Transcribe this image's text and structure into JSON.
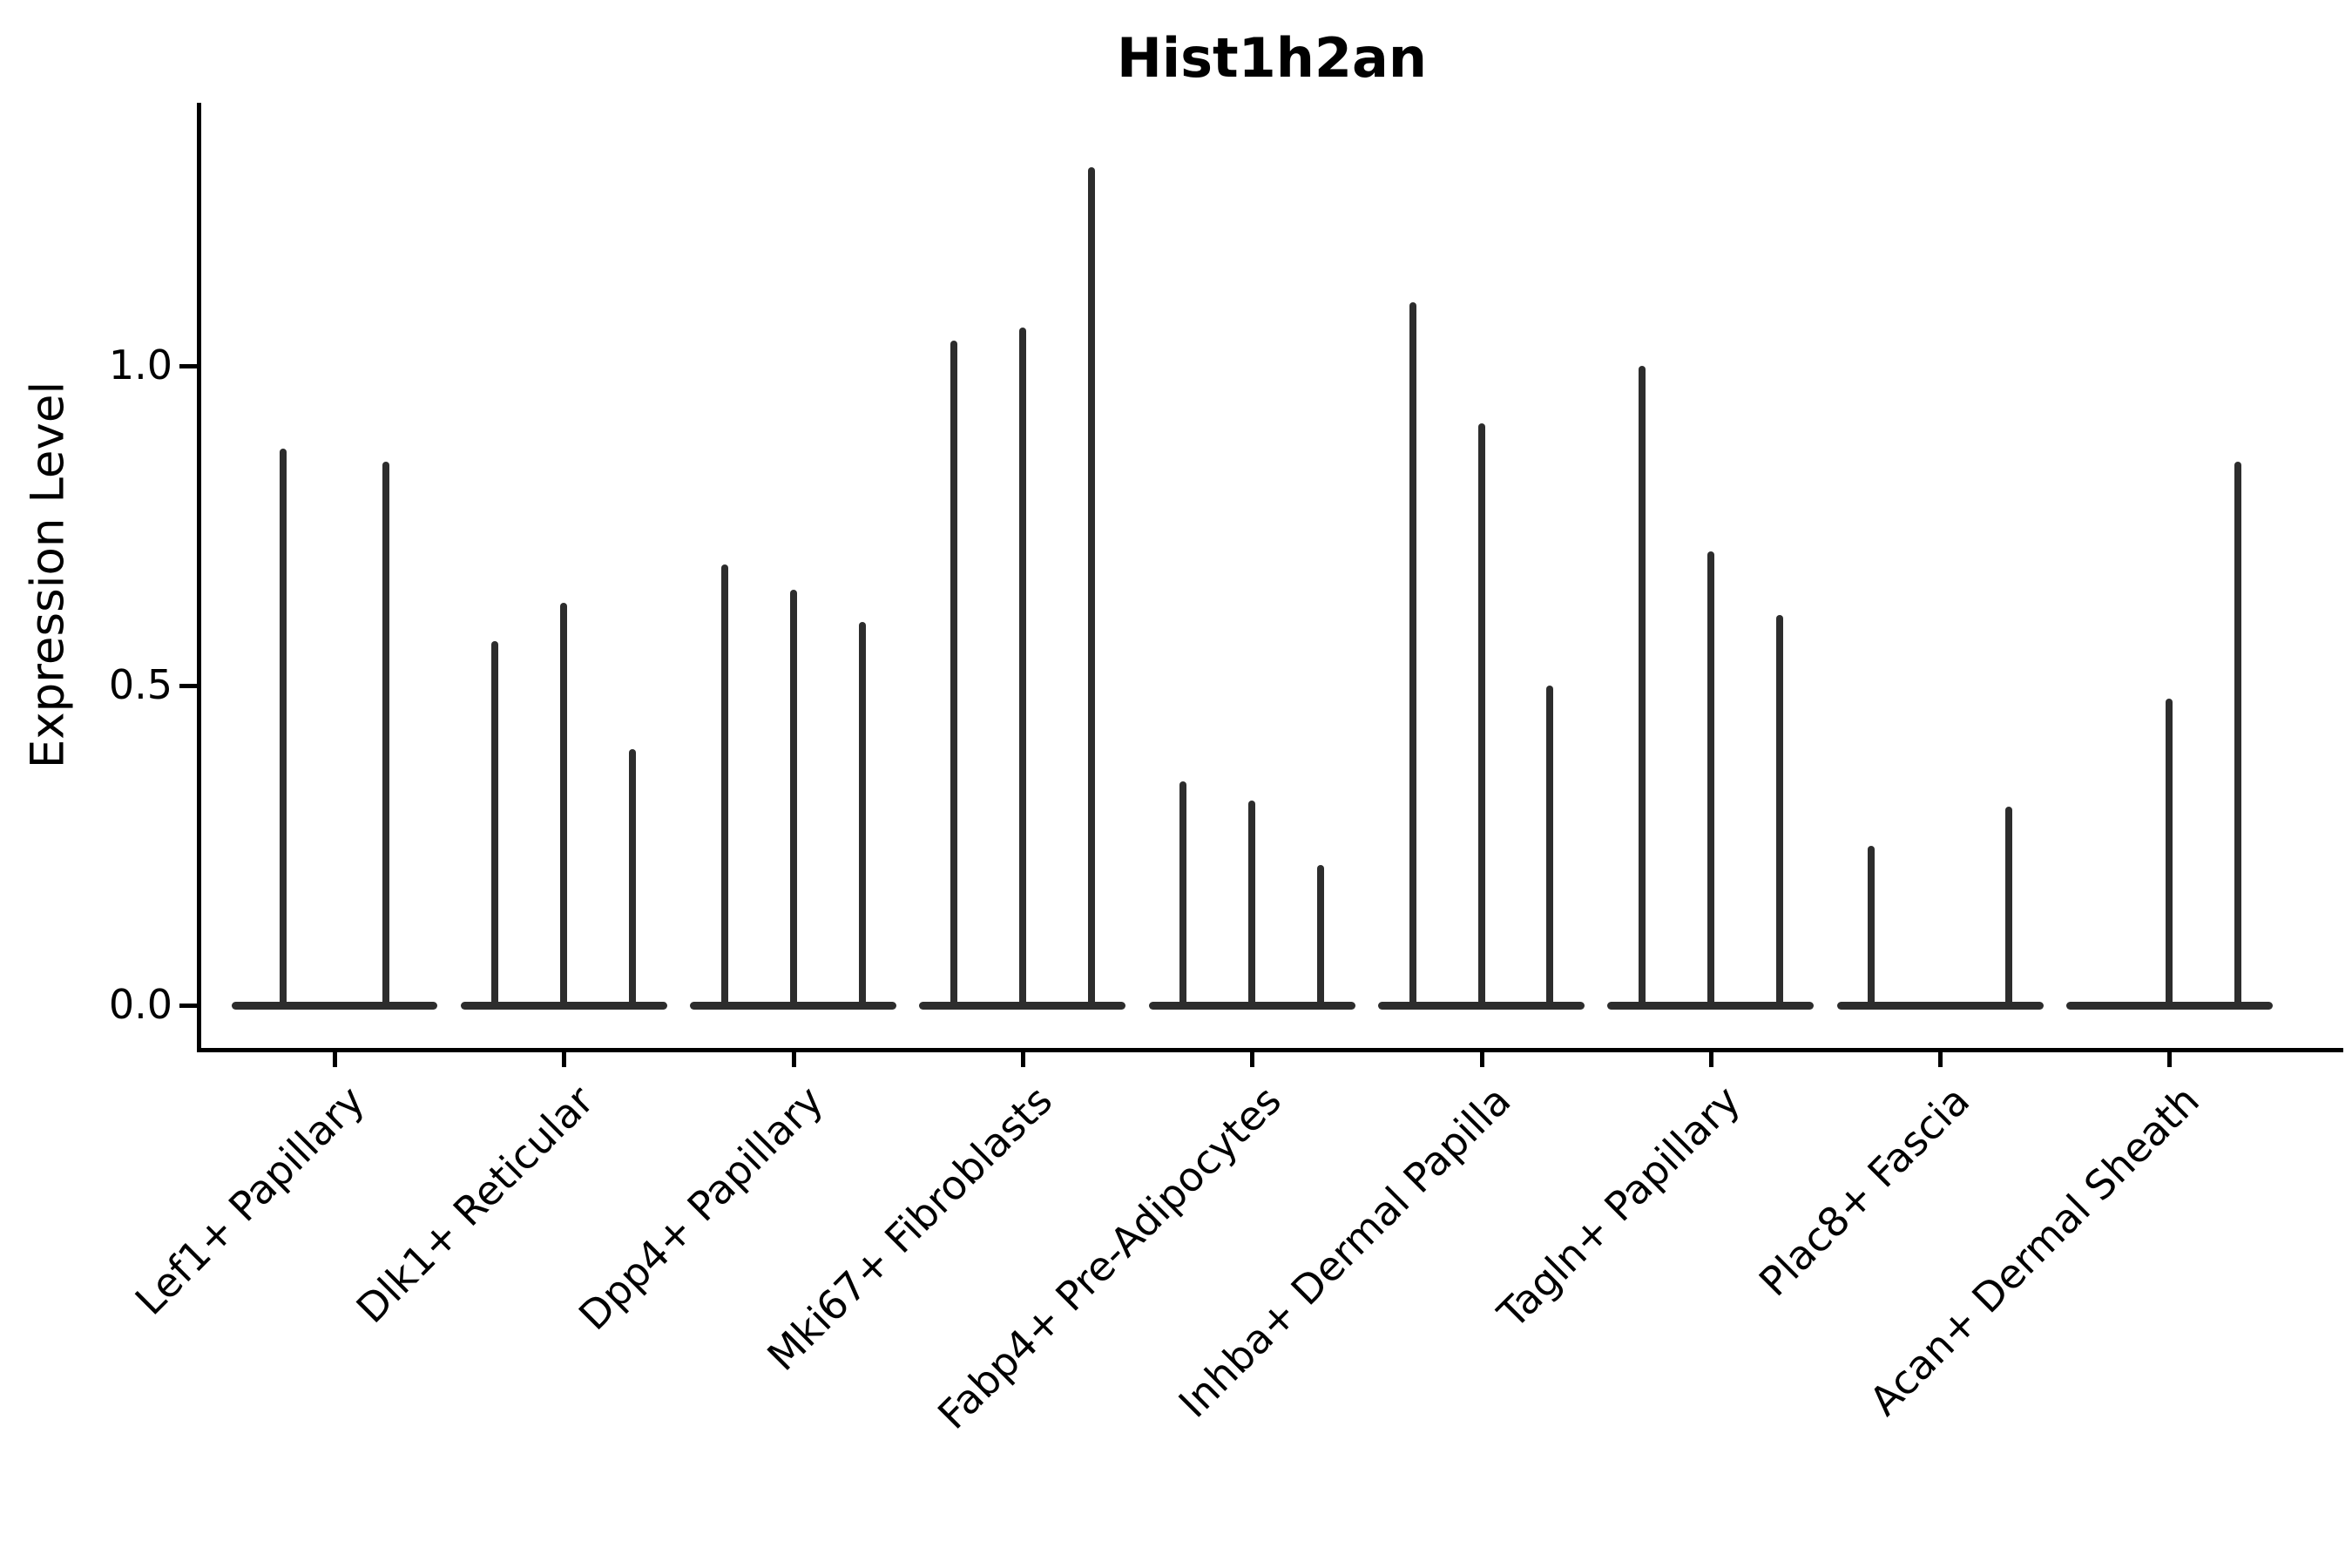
{
  "chart_data": {
    "type": "violin",
    "title": "Hist1h2an",
    "ylabel": "Expression Level",
    "xlabel": "",
    "ylim": [
      -0.07,
      1.41
    ],
    "grid": false,
    "legend": "none",
    "yticks": [
      {
        "value": 0.0,
        "label": "0.0"
      },
      {
        "value": 0.5,
        "label": "0.5"
      },
      {
        "value": 1.0,
        "label": "1.0"
      }
    ],
    "violin_color": "#2d2d2d",
    "axis_color": "#000000",
    "groups": [
      {
        "name": "Lef1+ Papillary",
        "max_expression": [
          0.87,
          0.85
        ]
      },
      {
        "name": "Dlk1+ Reticular",
        "max_expression": [
          0.57,
          0.63,
          0.4
        ]
      },
      {
        "name": "Dpp4+ Papillary",
        "max_expression": [
          0.69,
          0.65,
          0.6
        ]
      },
      {
        "name": "Mki67+ Fibroblasts",
        "max_expression": [
          1.04,
          1.06,
          1.31
        ]
      },
      {
        "name": "Fabp4+ Pre-Adipocytes",
        "max_expression": [
          0.35,
          0.32,
          0.22
        ]
      },
      {
        "name": "Inhba+ Dermal Papilla",
        "max_expression": [
          1.1,
          0.91,
          0.5
        ]
      },
      {
        "name": "Tagln+ Papillary",
        "max_expression": [
          1.0,
          0.71,
          0.61
        ]
      },
      {
        "name": "Plac8+ Fascia",
        "max_expression": [
          0.25,
          0.0,
          0.31
        ]
      },
      {
        "name": "Acan+ Dermal Sheath",
        "max_expression": [
          0.0,
          0.48,
          0.85
        ]
      }
    ]
  }
}
